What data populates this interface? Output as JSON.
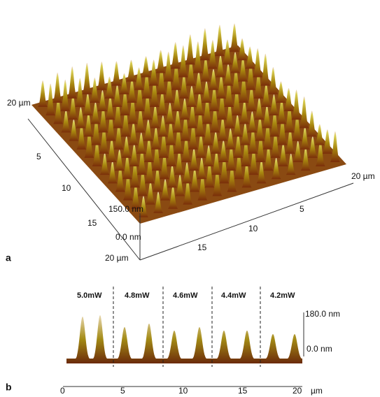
{
  "panel_a": {
    "label": "a",
    "left_axis": [
      "20 µm",
      "5",
      "10",
      "15",
      "20 µm"
    ],
    "right_axis": [
      "15",
      "10",
      "5",
      "20 µm"
    ],
    "z_axis": [
      "150.0 nm",
      "0.0 nm"
    ]
  },
  "panel_b": {
    "label": "b",
    "powers": [
      "5.0mW",
      "4.8mW",
      "4.6mW",
      "4.4mW",
      "4.2mW"
    ],
    "z_axis": [
      "180.0 nm",
      "0.0 nm"
    ],
    "x_axis": [
      "0",
      "5",
      "10",
      "15",
      "20"
    ],
    "x_unit": "µm"
  }
}
